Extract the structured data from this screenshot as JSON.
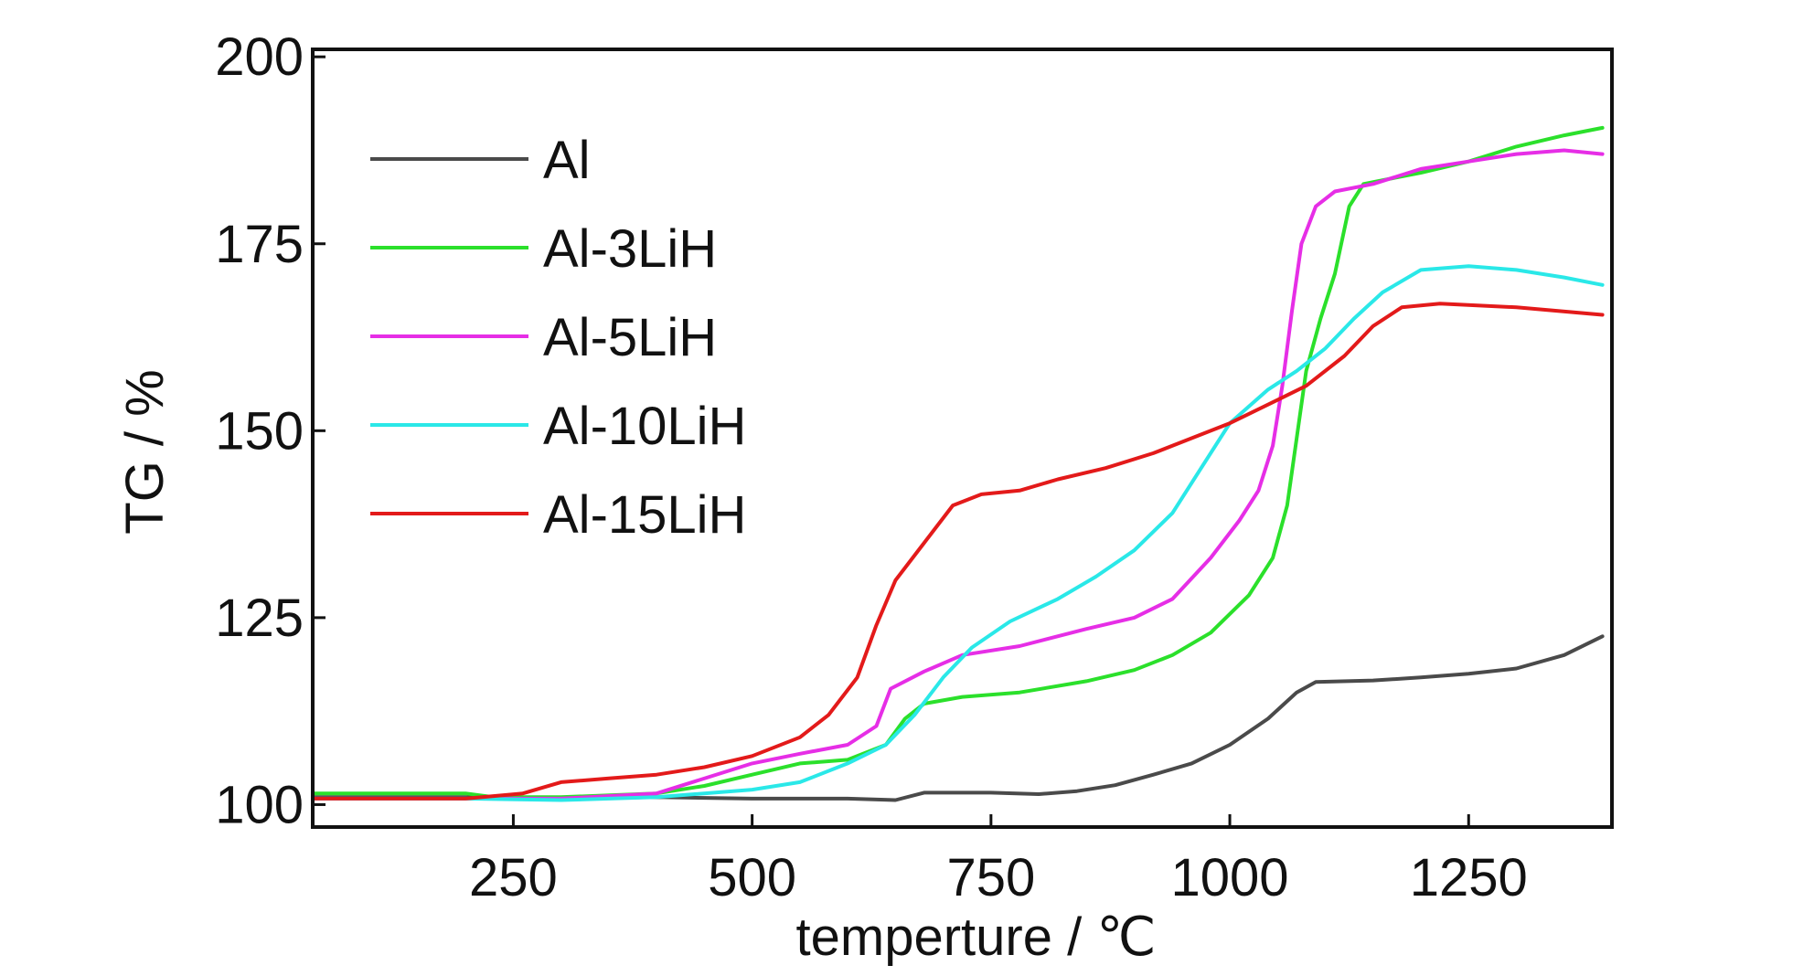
{
  "chart_data": {
    "type": "line",
    "title": "",
    "xlabel": "temperture / ℃",
    "ylabel": "TG / %",
    "xlim": [
      40,
      1400
    ],
    "ylim": [
      97,
      201
    ],
    "xticks": [
      250,
      500,
      750,
      1000,
      1250
    ],
    "yticks": [
      100,
      125,
      150,
      175,
      200
    ],
    "grid": false,
    "legend_position": "top-left",
    "series": [
      {
        "name": "Al",
        "color": "#4a4a4a",
        "points": [
          [
            40,
            101
          ],
          [
            200,
            101
          ],
          [
            300,
            100.8
          ],
          [
            400,
            101
          ],
          [
            500,
            100.8
          ],
          [
            600,
            100.8
          ],
          [
            650,
            100.6
          ],
          [
            680,
            101.6
          ],
          [
            750,
            101.6
          ],
          [
            800,
            101.4
          ],
          [
            840,
            101.8
          ],
          [
            880,
            102.6
          ],
          [
            920,
            104
          ],
          [
            960,
            105.5
          ],
          [
            1000,
            108
          ],
          [
            1040,
            111.5
          ],
          [
            1070,
            115
          ],
          [
            1090,
            116.4
          ],
          [
            1150,
            116.6
          ],
          [
            1200,
            117
          ],
          [
            1250,
            117.5
          ],
          [
            1300,
            118.2
          ],
          [
            1350,
            120
          ],
          [
            1390,
            122.5
          ]
        ]
      },
      {
        "name": "Al-3LiH",
        "color": "#2be02b",
        "points": [
          [
            40,
            101.5
          ],
          [
            200,
            101.5
          ],
          [
            230,
            101
          ],
          [
            300,
            101
          ],
          [
            400,
            101.5
          ],
          [
            450,
            102.5
          ],
          [
            500,
            104
          ],
          [
            550,
            105.5
          ],
          [
            600,
            106
          ],
          [
            640,
            108
          ],
          [
            660,
            111.5
          ],
          [
            680,
            113.5
          ],
          [
            720,
            114.4
          ],
          [
            780,
            115
          ],
          [
            850,
            116.5
          ],
          [
            900,
            118
          ],
          [
            940,
            120
          ],
          [
            980,
            123
          ],
          [
            1020,
            128
          ],
          [
            1045,
            133
          ],
          [
            1060,
            140
          ],
          [
            1070,
            149
          ],
          [
            1080,
            158
          ],
          [
            1095,
            165
          ],
          [
            1110,
            171
          ],
          [
            1125,
            180
          ],
          [
            1140,
            183
          ],
          [
            1200,
            184.5
          ],
          [
            1250,
            186
          ],
          [
            1300,
            188
          ],
          [
            1350,
            189.5
          ],
          [
            1390,
            190.5
          ]
        ]
      },
      {
        "name": "Al-5LiH",
        "color": "#e62ee6",
        "points": [
          [
            40,
            100.8
          ],
          [
            210,
            100.8
          ],
          [
            300,
            100.8
          ],
          [
            400,
            101.5
          ],
          [
            500,
            105.5
          ],
          [
            550,
            106.8
          ],
          [
            600,
            108
          ],
          [
            630,
            110.5
          ],
          [
            645,
            115.5
          ],
          [
            680,
            117.8
          ],
          [
            720,
            120
          ],
          [
            780,
            121.2
          ],
          [
            850,
            123.5
          ],
          [
            900,
            125
          ],
          [
            940,
            127.5
          ],
          [
            980,
            133
          ],
          [
            1010,
            138
          ],
          [
            1030,
            142
          ],
          [
            1045,
            148
          ],
          [
            1055,
            156
          ],
          [
            1065,
            166
          ],
          [
            1075,
            175
          ],
          [
            1090,
            180
          ],
          [
            1110,
            182
          ],
          [
            1150,
            183
          ],
          [
            1200,
            185
          ],
          [
            1250,
            186
          ],
          [
            1300,
            187
          ],
          [
            1350,
            187.5
          ],
          [
            1390,
            187
          ]
        ]
      },
      {
        "name": "Al-10LiH",
        "color": "#2ae8e8",
        "points": [
          [
            40,
            100.8
          ],
          [
            200,
            100.8
          ],
          [
            300,
            100.6
          ],
          [
            400,
            101
          ],
          [
            500,
            102
          ],
          [
            550,
            103
          ],
          [
            600,
            105.5
          ],
          [
            640,
            108
          ],
          [
            670,
            112
          ],
          [
            700,
            117
          ],
          [
            730,
            121
          ],
          [
            770,
            124.5
          ],
          [
            820,
            127.5
          ],
          [
            860,
            130.5
          ],
          [
            900,
            134
          ],
          [
            940,
            139
          ],
          [
            970,
            145
          ],
          [
            1000,
            151
          ],
          [
            1040,
            155.5
          ],
          [
            1070,
            158
          ],
          [
            1100,
            161
          ],
          [
            1130,
            165
          ],
          [
            1160,
            168.5
          ],
          [
            1200,
            171.5
          ],
          [
            1250,
            172
          ],
          [
            1300,
            171.5
          ],
          [
            1350,
            170.5
          ],
          [
            1390,
            169.5
          ]
        ]
      },
      {
        "name": "Al-15LiH",
        "color": "#e31a1a",
        "points": [
          [
            40,
            100.8
          ],
          [
            200,
            100.8
          ],
          [
            260,
            101.5
          ],
          [
            300,
            103
          ],
          [
            350,
            103.5
          ],
          [
            400,
            104
          ],
          [
            450,
            105
          ],
          [
            500,
            106.5
          ],
          [
            550,
            109
          ],
          [
            580,
            112
          ],
          [
            610,
            117
          ],
          [
            630,
            124
          ],
          [
            650,
            130
          ],
          [
            680,
            135
          ],
          [
            710,
            140
          ],
          [
            740,
            141.5
          ],
          [
            780,
            142
          ],
          [
            820,
            143.5
          ],
          [
            870,
            145
          ],
          [
            920,
            147
          ],
          [
            960,
            149
          ],
          [
            1000,
            151
          ],
          [
            1040,
            153.5
          ],
          [
            1080,
            156
          ],
          [
            1120,
            160
          ],
          [
            1150,
            164
          ],
          [
            1180,
            166.5
          ],
          [
            1220,
            167
          ],
          [
            1300,
            166.5
          ],
          [
            1390,
            165.5
          ]
        ]
      }
    ]
  }
}
